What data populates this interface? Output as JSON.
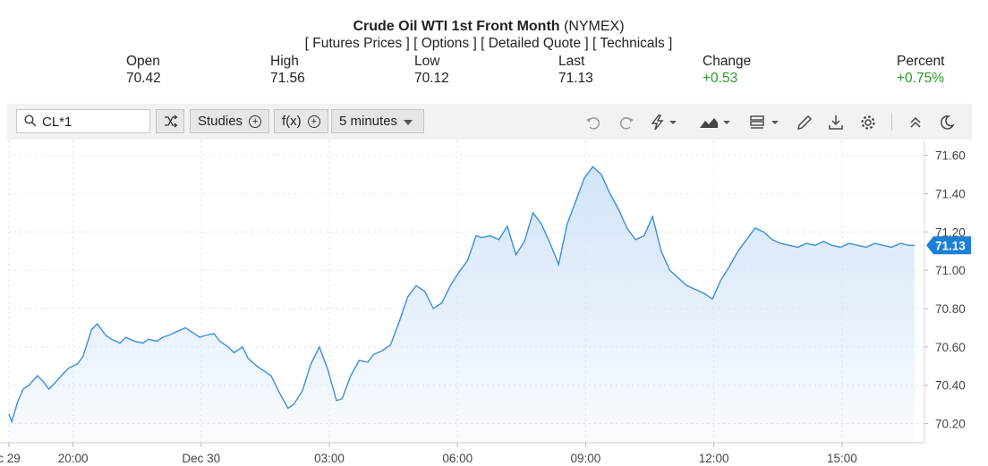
{
  "header": {
    "title_bold": "Crude Oil WTI 1st Front Month",
    "title_suffix": " (NYMEX)",
    "links": [
      "[ Futures Prices ]",
      "[ Options ]",
      "[ Detailed Quote ]",
      "[ Technicals ]"
    ]
  },
  "quote": {
    "open_label": "Open",
    "open": "70.42",
    "high_label": "High",
    "high": "71.56",
    "low_label": "Low",
    "low": "70.12",
    "last_label": "Last",
    "last": "71.13",
    "change_label": "Change",
    "change": "+0.53",
    "percent_label": "Percent",
    "percent": "+0.75%"
  },
  "toolbar": {
    "symbol": "CL*1",
    "studies_label": "Studies",
    "fx_label": "f(x)",
    "interval_label": "5 minutes"
  },
  "colors": {
    "line": "#3a8fd9",
    "fill_top": "#cfe3f8",
    "positive": "#2a9a2a",
    "last_badge": "#1e7fd6"
  },
  "chart_data": {
    "type": "area",
    "symbol": "CL*1",
    "title": "",
    "xlabel": "",
    "ylabel": "",
    "last_value": "71.13",
    "ylim": [
      70.1,
      71.64
    ],
    "y_ticks": [
      "71.60",
      "71.40",
      "71.20",
      "71.00",
      "70.80",
      "70.60",
      "70.40",
      "70.20"
    ],
    "y_tick_values": [
      71.6,
      71.4,
      71.2,
      71.0,
      70.8,
      70.6,
      70.4,
      70.2
    ],
    "x_ticks": [
      "c 29",
      "20:00",
      "Dec 30",
      "03:00",
      "06:00",
      "09:00",
      "12:00",
      "15:00"
    ],
    "x_tick_hours": [
      0,
      2.25,
      6.75,
      11.25,
      15.75,
      20.25,
      24.75,
      29.25
    ],
    "grid": true,
    "x_hours_after_dec29_1745": [
      0,
      0.1,
      0.3,
      0.5,
      0.7,
      1.0,
      1.2,
      1.4,
      1.6,
      1.9,
      2.1,
      2.4,
      2.6,
      2.9,
      3.1,
      3.4,
      3.6,
      3.9,
      4.1,
      4.4,
      4.7,
      4.9,
      5.2,
      5.4,
      5.6,
      5.9,
      6.2,
      6.4,
      6.7,
      6.9,
      7.2,
      7.4,
      7.7,
      7.9,
      8.2,
      8.4,
      8.7,
      9.0,
      9.2,
      9.5,
      9.8,
      10.0,
      10.3,
      10.6,
      10.9,
      11.2,
      11.5,
      11.7,
      12.0,
      12.3,
      12.6,
      12.8,
      13.1,
      13.4,
      13.7,
      14.0,
      14.3,
      14.6,
      14.9,
      15.2,
      15.5,
      15.8,
      16.1,
      16.4,
      16.6,
      16.9,
      17.2,
      17.5,
      17.8,
      18.1,
      18.4,
      18.7,
      19.0,
      19.3,
      19.6,
      19.9,
      20.2,
      20.5,
      20.8,
      21.1,
      21.4,
      21.7,
      22.0,
      22.3,
      22.6,
      22.9,
      23.2,
      23.5,
      23.8,
      24.1,
      24.4,
      24.7,
      25.0,
      25.3,
      25.6,
      25.9,
      26.2,
      26.5,
      26.8,
      27.1,
      27.4,
      27.7,
      28.0,
      28.3,
      28.6,
      28.9,
      29.2,
      29.5,
      29.8,
      30.1,
      30.4,
      30.7,
      31.0,
      31.3,
      31.6,
      31.8
    ],
    "values": [
      70.25,
      70.21,
      70.31,
      70.38,
      70.4,
      70.45,
      70.42,
      70.38,
      70.41,
      70.46,
      70.49,
      70.51,
      70.55,
      70.69,
      70.72,
      70.66,
      70.64,
      70.62,
      70.65,
      70.63,
      70.62,
      70.64,
      70.63,
      70.65,
      70.66,
      70.68,
      70.7,
      70.68,
      70.65,
      70.66,
      70.67,
      70.63,
      70.6,
      70.57,
      70.6,
      70.54,
      70.5,
      70.47,
      70.45,
      70.36,
      70.28,
      70.3,
      70.37,
      70.51,
      70.6,
      70.48,
      70.32,
      70.33,
      70.45,
      70.53,
      70.52,
      70.56,
      70.58,
      70.61,
      70.73,
      70.86,
      70.92,
      70.89,
      70.8,
      70.83,
      70.92,
      70.99,
      71.05,
      71.18,
      71.17,
      71.18,
      71.16,
      71.23,
      71.08,
      71.15,
      71.3,
      71.24,
      71.14,
      71.03,
      71.24,
      71.36,
      71.48,
      71.54,
      71.5,
      71.4,
      71.32,
      71.22,
      71.16,
      71.18,
      71.28,
      71.1,
      71.0,
      70.96,
      70.92,
      70.9,
      70.88,
      70.85,
      70.95,
      71.02,
      71.1,
      71.16,
      71.22,
      71.2,
      71.16,
      71.14,
      71.13,
      71.12,
      71.14,
      71.13,
      71.15,
      71.13,
      71.12,
      71.14,
      71.13,
      71.12,
      71.14,
      71.13,
      71.12,
      71.14,
      71.13,
      71.13
    ]
  }
}
